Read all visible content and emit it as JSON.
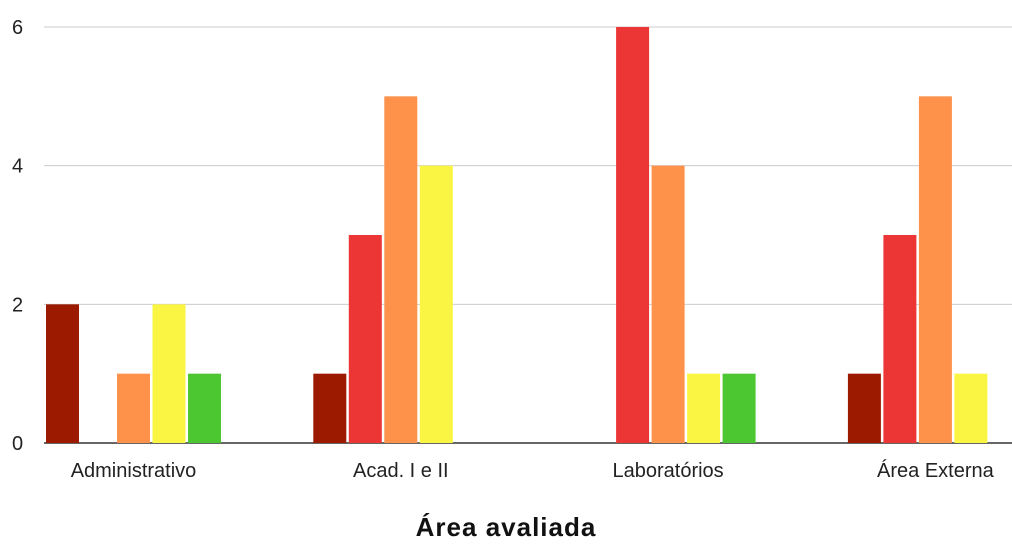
{
  "chart_data": {
    "type": "bar",
    "title": "",
    "xlabel": "Área avaliada",
    "ylabel": "",
    "ylim": [
      0,
      6
    ],
    "yticks": [
      0,
      2,
      4,
      6
    ],
    "grid": true,
    "categories": [
      "Administrativo",
      "Acad. I e II",
      "Laboratórios",
      "Área Externa"
    ],
    "series": [
      {
        "color": "#9b1a00",
        "values": [
          2,
          1,
          0,
          1
        ]
      },
      {
        "color": "#ec3535",
        "values": [
          0,
          3,
          6,
          3
        ]
      },
      {
        "color": "#ff924a",
        "values": [
          1,
          5,
          4,
          5
        ]
      },
      {
        "color": "#f9f542",
        "values": [
          2,
          4,
          1,
          1
        ]
      },
      {
        "color": "#4cc732",
        "values": [
          1,
          0,
          1,
          0
        ]
      }
    ]
  }
}
